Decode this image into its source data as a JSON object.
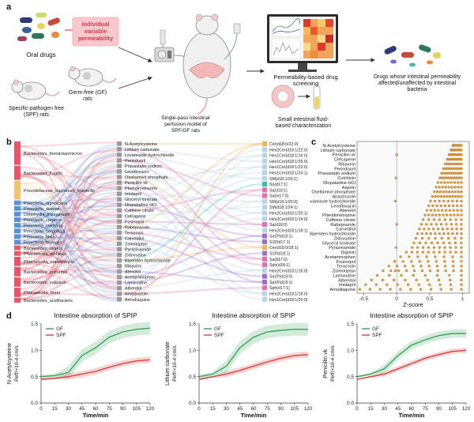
{
  "panel_a": {
    "label": "a",
    "oral_drugs": "Oral drugs",
    "callout": "individual variable permeability",
    "spf_rats": "Specific-pathogen free (SPF) rats",
    "gf_rats": "Germ-free (GF) rats",
    "perfusion_model": "Single-pass intestinal perfusion model of SPF/GF rats",
    "screening": "Permeability-based drug screening",
    "fluid_char": "Small intestinal fluid-based characterization",
    "outcome": "Drugs whose intestinal permeability affected/unaffected by intestinal bacteria"
  },
  "panel_b": {
    "label": "b",
    "bacteria": [
      {
        "name": "Bacteroides_thetaiotaomicron",
        "color": "#e8556b"
      },
      {
        "name": "Bacteroides_fragilis",
        "color": "#e8556b"
      },
      {
        "name": "Prevotellaceae_bacterium_Marseille",
        "color": "#f2c36b"
      },
      {
        "name": "Prevotella_nigrescens",
        "color": "#5b8fd6"
      },
      {
        "name": "Prevotella_disiens",
        "color": "#5b8fd6"
      },
      {
        "name": "Chlamydia_trachomatis",
        "color": "#5b8fd6"
      },
      {
        "name": "Prevotella_corporis",
        "color": "#5b8fd6"
      },
      {
        "name": "Prevotella_colorans",
        "color": "#5b8fd6"
      },
      {
        "name": "Prevotella_bergensis",
        "color": "#5b8fd6"
      },
      {
        "name": "Prevotella_bivia",
        "color": "#5b8fd6"
      },
      {
        "name": "Prevotella_buccalis",
        "color": "#5b8fd6"
      },
      {
        "name": "Bacteroides_ovatus",
        "color": "#e8556b"
      },
      {
        "name": "Phocaeicola_plebeius",
        "color": "#e8556b"
      },
      {
        "name": "Phocaeicola_massiliensis",
        "color": "#e8556b"
      },
      {
        "name": "Bacteroides_uniformis",
        "color": "#e8556b"
      },
      {
        "name": "Bacteroides_vulgatus",
        "color": "#e8556b"
      },
      {
        "name": "Phocaeicola_dorei",
        "color": "#e8556b"
      },
      {
        "name": "Bacteroides_acidifaciens",
        "color": "#e8556b"
      }
    ],
    "drugs": [
      "N-Acetylcysteine",
      "Lithium carbonate",
      "Levamisole hydrochloride",
      "Perindopril",
      "Pravastatin sodium",
      "Levofloxacin",
      "Oseltamivir phosphate",
      "Penicillin vk",
      "Phendimetrazine",
      "Imidapril",
      "Glyceryl trinitrate",
      "Olopatadine HCl",
      "Caffeine citrate",
      "Cefcapene",
      "Fosinopril",
      "Rabeprazole",
      "Terazosin",
      "Carvedilol",
      "Zolmitriptan",
      "Pyrazinamide",
      "Zidovudine",
      "Biperiden hydrochloride",
      "Ribavirin",
      "Atenolol",
      "Acetaminophen",
      "Lamivudine",
      "Albendol",
      "Anastrozole",
      "Amodiaquine"
    ],
    "lipids": [
      {
        "name": "Cer(d18:0/22:0)",
        "color": "#f2b35a"
      },
      {
        "name": "Hex2Cer(d18:1/22:0)",
        "color": "#b8d3e8"
      },
      {
        "name": "Hex1Cer(d18:1/16:0)",
        "color": "#b8d3e8"
      },
      {
        "name": "Hex1Cer(d18:1/26:0)",
        "color": "#b8d3e8"
      },
      {
        "name": "Hex1Cer(d18:1/22:0)",
        "color": "#b8d3e8"
      },
      {
        "name": "Hex1Cer(d18:1/24:1)",
        "color": "#b8d3e8"
      },
      {
        "name": "SM(d18:1/26:1)",
        "color": "#b8d3e8"
      },
      {
        "name": "So(d17:1)",
        "color": "#2ec4a0"
      },
      {
        "name": "Sa(d18:1)",
        "color": "#e26fb0"
      },
      {
        "name": "Sa(m17:0)",
        "color": "#e26fb0"
      },
      {
        "name": "SM(d18:1/26:0)",
        "color": "#b8d3e8"
      },
      {
        "name": "SM(d18:1/24:1)",
        "color": "#b8d3e8"
      },
      {
        "name": "Hex2Cer(d18:1/20:1)",
        "color": "#b8d3e8"
      },
      {
        "name": "Hex2Cer(d18:1/14:0)",
        "color": "#b8d3e8"
      },
      {
        "name": "Sa(d18:0)",
        "color": "#e26fb0"
      },
      {
        "name": "Hex2Cer(d18:1/18:1)",
        "color": "#b8d3e8"
      },
      {
        "name": "Sa1P(d18:1)",
        "color": "#9a6fd0"
      },
      {
        "name": "S1P(d17:1)",
        "color": "#9a6fd0"
      },
      {
        "name": "Cer(d18:0/18:1)",
        "color": "#f2b35a"
      },
      {
        "name": "S1P(d18:1)",
        "color": "#9a6fd0"
      },
      {
        "name": "Sa(d17:0)",
        "color": "#e26fb0"
      },
      {
        "name": "Sph(d18:1)",
        "color": "#e26fb0"
      },
      {
        "name": "Hex2Cer(d18:1/16:0)",
        "color": "#b8d3e8"
      },
      {
        "name": "Sa1P(d18:0)",
        "color": "#9a6fd0"
      },
      {
        "name": "Sa1P(d18:1)",
        "color": "#9a6fd0"
      },
      {
        "name": "Sph(d17:1)",
        "color": "#e26fb0"
      },
      {
        "name": "Hex2Cer(d18:1/18:0)",
        "color": "#b8d3e8"
      },
      {
        "name": "Hex1Cer(d18:1/20:0)",
        "color": "#b8d3e8"
      }
    ]
  },
  "panel_c": {
    "label": "c",
    "xlabel": "Z-score",
    "xticks": [
      "-0.5",
      "0",
      "0.5",
      "1"
    ],
    "drugs": [
      "N-Acetylcysteine",
      "Lithium carbonate",
      "Penicillin vk",
      "Cefcapene",
      "Ribavirin",
      "Perindopril",
      "Pravastatin sodium",
      "Colchicin",
      "Olopatadine HCl",
      "Aspirin",
      "Oseltamivir phosphate",
      "Anastrozole",
      "Levamisole hydrochloride",
      "Levofloxacin",
      "Atenolol",
      "Phendimetrazine",
      "Caffeine citrate",
      "Rabeprazole",
      "Carvedilol",
      "Biperiden hydrochloride",
      "Zidovudine",
      "Glyceryl trinitrate",
      "Pyrazinamide",
      "Digoxin",
      "Acetaminophen",
      "Fosinopril",
      "Terazosin",
      "Zolmitriptan",
      "Lamivudine",
      "Albendol",
      "Imidapril",
      "Amodiaquine"
    ],
    "dot_color": "#e8a23a"
  },
  "panel_d": {
    "label": "d",
    "legend_gf": "GF",
    "legend_spf": "SPF",
    "xlabel": "Time/min",
    "gf_color": "#3aa35a",
    "spf_color": "#d94040",
    "charts": [
      {
        "title": "Intestine absorption of SPIP",
        "ylabel_drug": "N-Acetylcysteine",
        "ylabel_unit": "Peff/×10-4 cm/s",
        "x": [
          0,
          15,
          30,
          45,
          60,
          75,
          90,
          105,
          120
        ],
        "xticks": [
          "0",
          "15",
          "30",
          "45",
          "60",
          "75",
          "90",
          "105",
          "120"
        ],
        "yticks": [
          "0.0",
          "0.5",
          "1.0",
          "1.5"
        ],
        "ylim": [
          0,
          1.5
        ],
        "series": [
          {
            "name": "GF",
            "values": [
              0.5,
              0.52,
              0.58,
              0.9,
              1.05,
              1.25,
              1.35,
              1.4,
              1.42
            ],
            "band": 0.12
          },
          {
            "name": "SPF",
            "values": [
              0.45,
              0.47,
              0.5,
              0.55,
              0.6,
              0.68,
              0.75,
              0.8,
              0.82
            ],
            "band": 0.06
          }
        ]
      },
      {
        "title": "Intestine absorption of SPIP",
        "ylabel_drug": "Lithium carbonate",
        "ylabel_unit": "Peff/×10-4 cm/s",
        "x": [
          0,
          15,
          30,
          45,
          60,
          75,
          90,
          105,
          120
        ],
        "xticks": [
          "0",
          "15",
          "30",
          "45",
          "60",
          "75",
          "90",
          "105",
          "120"
        ],
        "yticks": [
          "0.0",
          "0.5",
          "1.0",
          "1.5"
        ],
        "ylim": [
          0,
          1.5
        ],
        "series": [
          {
            "name": "GF",
            "values": [
              0.5,
              0.55,
              0.7,
              1.05,
              1.25,
              1.35,
              1.38,
              1.4,
              1.4
            ],
            "band": 0.12
          },
          {
            "name": "SPF",
            "values": [
              0.45,
              0.5,
              0.55,
              0.62,
              0.7,
              0.78,
              0.85,
              0.9,
              0.92
            ],
            "band": 0.06
          }
        ]
      },
      {
        "title": "Intestine absorption of SPIP",
        "ylabel_drug": "Penicillin vk",
        "ylabel_unit": "Peff/×10-4 cm/s",
        "x": [
          0,
          15,
          30,
          45,
          60,
          75,
          90,
          105,
          120
        ],
        "xticks": [
          "0",
          "15",
          "30",
          "45",
          "60",
          "75",
          "90",
          "105",
          "120"
        ],
        "yticks": [
          "0.0",
          "0.5",
          "1.0",
          "1.5"
        ],
        "ylim": [
          0,
          1.5
        ],
        "series": [
          {
            "name": "GF",
            "values": [
              0.5,
              0.55,
              0.65,
              0.9,
              1.1,
              1.2,
              1.28,
              1.32,
              1.32
            ],
            "band": 0.08
          },
          {
            "name": "SPF",
            "values": [
              0.45,
              0.5,
              0.55,
              0.65,
              0.75,
              0.85,
              0.92,
              0.98,
              1.0
            ],
            "band": 0.05
          }
        ]
      }
    ]
  }
}
